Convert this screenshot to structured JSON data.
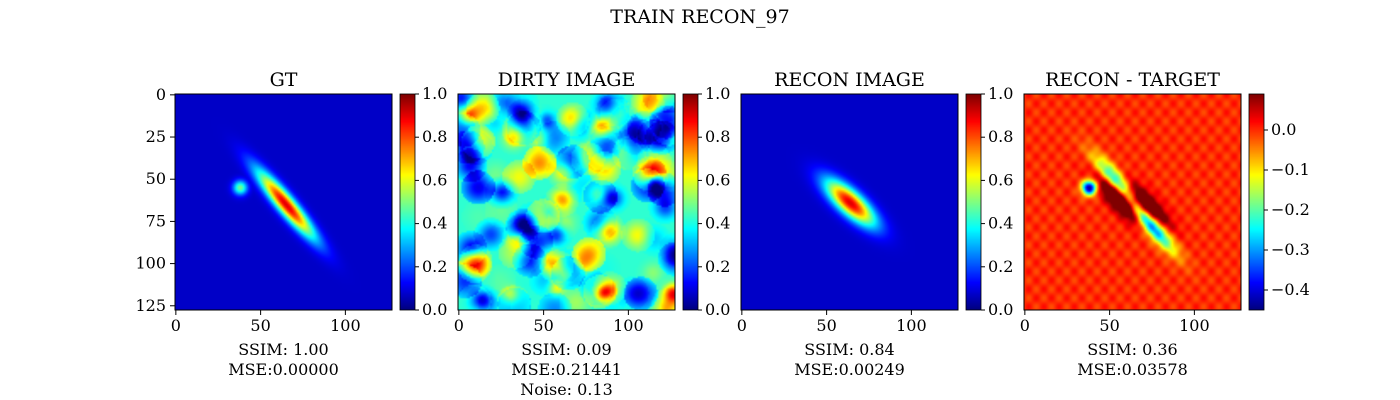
{
  "suptitle": "TRAIN RECON_97",
  "chart_data": [
    {
      "type": "heatmap",
      "title": "GT",
      "image_size": 128,
      "x_ticks": [
        0,
        50,
        100
      ],
      "y_ticks": [
        0,
        25,
        50,
        75,
        100,
        125
      ],
      "colormap": "jet",
      "colorbar": {
        "range": [
          0.0,
          1.0
        ],
        "ticks": [
          "0.0",
          "0.2",
          "0.4",
          "0.6",
          "0.8",
          "1.0"
        ]
      },
      "caption": [
        "SSIM: 1.00",
        "MSE:0.00000"
      ],
      "content": {
        "kind": "ellipse",
        "cx": 65,
        "cy": 65,
        "rx": 30,
        "ry": 6,
        "angle_deg": 50,
        "peak": 1.0,
        "extra": {
          "cx": 38,
          "cy": 55,
          "r": 3,
          "peak": 0.5
        }
      }
    },
    {
      "type": "heatmap",
      "title": "DIRTY IMAGE",
      "image_size": 128,
      "x_ticks": [
        0,
        50,
        100
      ],
      "colormap": "jet",
      "colorbar": {
        "range": [
          0.0,
          1.0
        ],
        "ticks": [
          "0.0",
          "0.2",
          "0.4",
          "0.6",
          "0.8",
          "1.0"
        ]
      },
      "caption": [
        "SSIM: 0.09",
        "MSE:0.21441",
        "Noise: 0.13"
      ],
      "content": {
        "kind": "noise"
      }
    },
    {
      "type": "heatmap",
      "title": "RECON IMAGE",
      "image_size": 128,
      "x_ticks": [
        0,
        50,
        100
      ],
      "colormap": "jet",
      "colorbar": {
        "range": [
          0.0,
          1.0
        ],
        "ticks": [
          "0.0",
          "0.2",
          "0.4",
          "0.6",
          "0.8",
          "1.0"
        ]
      },
      "caption": [
        "SSIM: 0.84",
        "MSE:0.00249"
      ],
      "content": {
        "kind": "ellipse",
        "cx": 64,
        "cy": 64,
        "rx": 22,
        "ry": 8,
        "angle_deg": 42,
        "peak": 1.0
      }
    },
    {
      "type": "heatmap",
      "title": "RECON - TARGET",
      "image_size": 128,
      "x_ticks": [
        0,
        50,
        100
      ],
      "colormap": "jet",
      "colorbar": {
        "range": [
          -0.45,
          0.09
        ],
        "ticks": [
          "−0.4",
          "−0.3",
          "−0.2",
          "−0.1",
          "0.0"
        ],
        "tick_values": [
          -0.4,
          -0.3,
          -0.2,
          -0.1,
          0.0
        ]
      },
      "caption": [
        "SSIM: 0.36",
        "MSE:0.03578"
      ],
      "content": {
        "kind": "diff"
      }
    }
  ]
}
